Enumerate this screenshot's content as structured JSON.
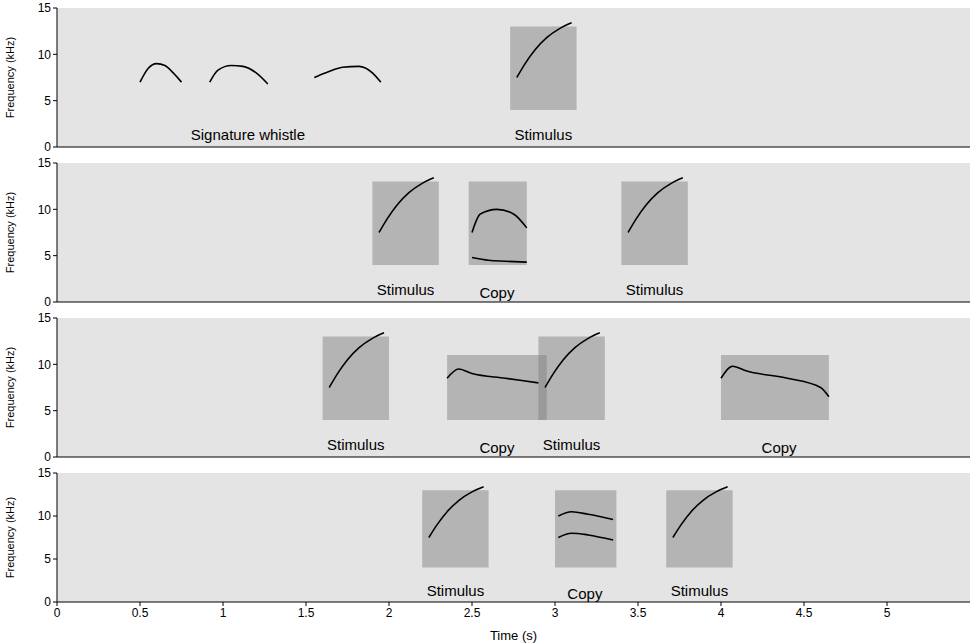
{
  "chart_data": [
    {
      "type": "line",
      "xlim": [
        0,
        5.5
      ],
      "xticks": [
        0,
        0.5,
        1,
        1.5,
        2,
        2.5,
        3,
        3.5,
        4,
        4.5,
        5
      ],
      "ylim": [
        0,
        15
      ],
      "yticks": [
        0,
        5,
        10,
        15
      ],
      "y_label": "Frequency (kHz)",
      "tick_labels": "y",
      "series": [
        {
          "color": "#000000",
          "x": [
            0.5,
            0.55,
            0.6,
            0.65,
            0.7,
            0.75
          ],
          "values": [
            7.0,
            8.5,
            9.0,
            8.8,
            8.0,
            7.0
          ]
        },
        {
          "color": "#000000",
          "x": [
            0.92,
            0.97,
            1.05,
            1.12,
            1.2,
            1.27
          ],
          "values": [
            7.0,
            8.3,
            8.8,
            8.7,
            8.0,
            6.8
          ]
        },
        {
          "color": "#000000",
          "x": [
            1.55,
            1.62,
            1.72,
            1.82,
            1.9,
            1.95
          ],
          "values": [
            7.5,
            8.0,
            8.6,
            8.7,
            8.0,
            7.0
          ]
        },
        {
          "color": "#000000",
          "x": [
            2.77,
            2.82,
            2.88,
            2.95,
            3.03,
            3.1
          ],
          "values": [
            7.5,
            9.0,
            10.5,
            11.8,
            12.8,
            13.4
          ]
        }
      ],
      "boxes": [
        {
          "x": [
            2.73,
            3.13
          ],
          "y": [
            4,
            13
          ]
        }
      ],
      "annotations": [
        {
          "text": "Signature whistle",
          "x": 1.15,
          "y": 1.3
        },
        {
          "text": "Stimulus",
          "x": 2.93,
          "y": 1.3
        }
      ]
    },
    {
      "type": "line",
      "xlim": [
        0,
        5.5
      ],
      "xticks": [
        0,
        0.5,
        1,
        1.5,
        2,
        2.5,
        3,
        3.5,
        4,
        4.5,
        5
      ],
      "ylim": [
        0,
        15
      ],
      "yticks": [
        0,
        5,
        10,
        15
      ],
      "y_label": "Frequency (kHz)",
      "tick_labels": "y",
      "series": [
        {
          "color": "#000000",
          "x": [
            1.94,
            1.99,
            2.05,
            2.12,
            2.2,
            2.27
          ],
          "values": [
            7.5,
            9.0,
            10.5,
            11.8,
            12.8,
            13.4
          ]
        },
        {
          "color": "#000000",
          "x": [
            2.5,
            2.55,
            2.65,
            2.75,
            2.83
          ],
          "values": [
            7.5,
            9.5,
            10.0,
            9.5,
            8.0
          ]
        },
        {
          "color": "#000000",
          "x": [
            2.5,
            2.6,
            2.7,
            2.83
          ],
          "values": [
            4.8,
            4.5,
            4.4,
            4.3
          ]
        },
        {
          "color": "#000000",
          "x": [
            3.44,
            3.49,
            3.55,
            3.62,
            3.7,
            3.77
          ],
          "values": [
            7.5,
            9.0,
            10.5,
            11.8,
            12.8,
            13.4
          ]
        }
      ],
      "boxes": [
        {
          "x": [
            1.9,
            2.3
          ],
          "y": [
            4,
            13
          ]
        },
        {
          "x": [
            2.48,
            2.83
          ],
          "y": [
            4,
            13
          ]
        },
        {
          "x": [
            3.4,
            3.8
          ],
          "y": [
            4,
            13
          ]
        }
      ],
      "annotations": [
        {
          "text": "Stimulus",
          "x": 2.1,
          "y": 1.3
        },
        {
          "text": "Copy",
          "x": 2.65,
          "y": 1.0
        },
        {
          "text": "Stimulus",
          "x": 3.6,
          "y": 1.3
        }
      ]
    },
    {
      "type": "line",
      "xlim": [
        0,
        5.5
      ],
      "xticks": [
        0,
        0.5,
        1,
        1.5,
        2,
        2.5,
        3,
        3.5,
        4,
        4.5,
        5
      ],
      "ylim": [
        0,
        15
      ],
      "yticks": [
        0,
        5,
        10,
        15
      ],
      "y_label": "Frequency (kHz)",
      "tick_labels": "y",
      "series": [
        {
          "color": "#000000",
          "x": [
            1.64,
            1.69,
            1.75,
            1.82,
            1.9,
            1.97
          ],
          "values": [
            7.5,
            9.0,
            10.5,
            11.8,
            12.8,
            13.4
          ]
        },
        {
          "color": "#000000",
          "x": [
            2.35,
            2.42,
            2.5,
            2.7,
            2.9
          ],
          "values": [
            8.5,
            9.5,
            9.0,
            8.5,
            8.0
          ]
        },
        {
          "color": "#000000",
          "x": [
            2.94,
            2.99,
            3.05,
            3.12,
            3.2,
            3.27
          ],
          "values": [
            7.5,
            9.0,
            10.5,
            11.8,
            12.8,
            13.4
          ]
        },
        {
          "color": "#000000",
          "x": [
            4.0,
            4.07,
            4.15,
            4.4,
            4.6,
            4.65
          ],
          "values": [
            8.5,
            9.8,
            9.3,
            8.5,
            7.5,
            6.5
          ]
        }
      ],
      "boxes": [
        {
          "x": [
            1.6,
            2.0
          ],
          "y": [
            4,
            13
          ]
        },
        {
          "x": [
            2.35,
            2.95
          ],
          "y": [
            4,
            11
          ]
        },
        {
          "x": [
            2.9,
            3.3
          ],
          "y": [
            4,
            13
          ]
        },
        {
          "x": [
            4.0,
            4.65
          ],
          "y": [
            4,
            11
          ]
        }
      ],
      "annotations": [
        {
          "text": "Stimulus",
          "x": 1.8,
          "y": 1.3
        },
        {
          "text": "Copy",
          "x": 2.65,
          "y": 1.0
        },
        {
          "text": "Stimulus",
          "x": 3.1,
          "y": 1.3
        },
        {
          "text": "Copy",
          "x": 4.35,
          "y": 1.0
        }
      ]
    },
    {
      "type": "line",
      "xlim": [
        0,
        5.5
      ],
      "xticks": [
        0,
        0.5,
        1,
        1.5,
        2,
        2.5,
        3,
        3.5,
        4,
        4.5,
        5
      ],
      "ylim": [
        0,
        15
      ],
      "yticks": [
        0,
        5,
        10,
        15
      ],
      "x_label": "Time (s)",
      "y_label": "Frequency (kHz)",
      "series": [
        {
          "color": "#000000",
          "x": [
            2.24,
            2.29,
            2.35,
            2.42,
            2.5,
            2.57
          ],
          "values": [
            7.5,
            9.0,
            10.5,
            11.8,
            12.8,
            13.4
          ]
        },
        {
          "color": "#000000",
          "x": [
            3.02,
            3.1,
            3.2,
            3.35
          ],
          "values": [
            10.0,
            10.5,
            10.2,
            9.6
          ]
        },
        {
          "color": "#000000",
          "x": [
            3.02,
            3.1,
            3.2,
            3.35
          ],
          "values": [
            7.5,
            8.0,
            7.8,
            7.2
          ]
        },
        {
          "color": "#000000",
          "x": [
            3.71,
            3.76,
            3.82,
            3.89,
            3.97,
            4.04
          ],
          "values": [
            7.5,
            9.0,
            10.5,
            11.8,
            12.8,
            13.4
          ]
        }
      ],
      "boxes": [
        {
          "x": [
            2.2,
            2.6
          ],
          "y": [
            4,
            13
          ]
        },
        {
          "x": [
            3.0,
            3.37
          ],
          "y": [
            4,
            13
          ]
        },
        {
          "x": [
            3.67,
            4.07
          ],
          "y": [
            4,
            13
          ]
        }
      ],
      "annotations": [
        {
          "text": "Stimulus",
          "x": 2.4,
          "y": 1.3
        },
        {
          "text": "Copy",
          "x": 3.18,
          "y": 1.0
        },
        {
          "text": "Stimulus",
          "x": 3.87,
          "y": 1.3
        }
      ]
    }
  ]
}
